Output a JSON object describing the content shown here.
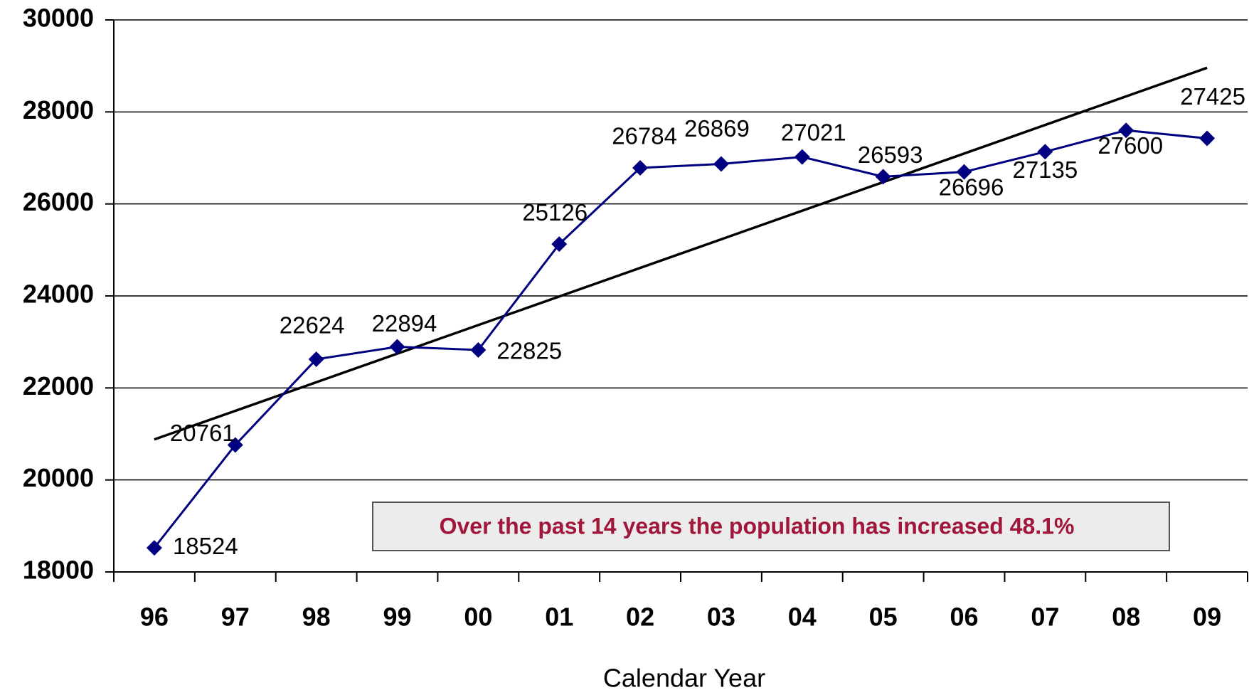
{
  "chart_data": {
    "type": "line",
    "x_label": "Calendar Year",
    "categories": [
      "96",
      "97",
      "98",
      "99",
      "00",
      "01",
      "02",
      "03",
      "04",
      "05",
      "06",
      "07",
      "08",
      "09"
    ],
    "series": [
      {
        "name": "Population",
        "color": "#000080",
        "values": [
          18524,
          20761,
          22624,
          22894,
          22825,
          25126,
          26784,
          26869,
          27021,
          26593,
          26696,
          27135,
          27600,
          27425
        ]
      }
    ],
    "trendline": {
      "type": "linear",
      "color": "#000000"
    },
    "ylim": [
      18000,
      30000
    ],
    "yticks": [
      18000,
      20000,
      22000,
      24000,
      26000,
      28000,
      30000
    ],
    "grid": true,
    "annotation": "Over the past 14 years the population has increased 48.1%"
  }
}
